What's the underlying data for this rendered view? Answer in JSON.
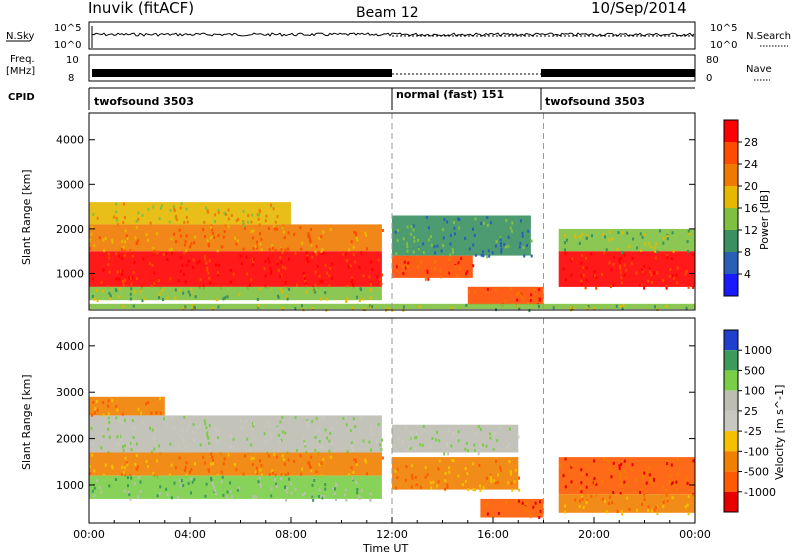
{
  "header": {
    "station": "Inuvik (fitACF)",
    "beam": "Beam 12",
    "date": "10/Sep/2014"
  },
  "noise_panel": {
    "left_label": "N.Sky",
    "left_ticks": [
      "10^5",
      "10^0"
    ],
    "right_label": "N.Search",
    "right_ticks": [
      "10^5",
      "10^0"
    ]
  },
  "freq_panel": {
    "left_label_line1": "Freq.",
    "left_label_line2": "[MHz]",
    "left_ticks": [
      "10",
      "8"
    ],
    "right_label": "Nave",
    "right_ticks": [
      "80",
      "0"
    ]
  },
  "cpid_panel": {
    "label": "CPID",
    "modes": [
      {
        "name": "twofsound 3503",
        "start_hour": 0,
        "end_hour": 12
      },
      {
        "name": "normal (fast) 151",
        "start_hour": 12,
        "end_hour": 18
      },
      {
        "name": "twofsound 3503",
        "start_hour": 18,
        "end_hour": 24
      }
    ]
  },
  "x_axis": {
    "label": "Time UT",
    "ticks": [
      "00:00",
      "04:00",
      "08:00",
      "12:00",
      "16:00",
      "20:00",
      "00:00"
    ]
  },
  "chart_data": [
    {
      "type": "heatmap",
      "title": "Power",
      "xlabel": "Time UT",
      "ylabel": "Slant Range [km]",
      "x_range_hours": [
        0,
        24
      ],
      "ylim": [
        180,
        4600
      ],
      "yticks": [
        "1000",
        "2000",
        "3000",
        "4000"
      ],
      "colorbar": {
        "label": "Power [dB]",
        "tick_labels": [
          "4",
          "8",
          "12",
          "16",
          "20",
          "24",
          "28"
        ],
        "colors": [
          "#1a1aff",
          "#2a5fb8",
          "#3a9060",
          "#7fc040",
          "#e6b800",
          "#f07a00",
          "#ff4d00",
          "#ff0000"
        ]
      },
      "regions": [
        {
          "t0": 0.0,
          "t1": 11.6,
          "r0": 700,
          "r1": 1500,
          "level": 7
        },
        {
          "t0": 0.0,
          "t1": 11.6,
          "r0": 1500,
          "r1": 2100,
          "level": 5
        },
        {
          "t0": 0.0,
          "t1": 8.0,
          "r0": 2100,
          "r1": 2600,
          "level": 4
        },
        {
          "t0": 0.0,
          "t1": 11.6,
          "r0": 400,
          "r1": 700,
          "level": 3
        },
        {
          "t0": 12.0,
          "t1": 15.2,
          "r0": 900,
          "r1": 1400,
          "level": 6
        },
        {
          "t0": 12.0,
          "t1": 17.5,
          "r0": 1400,
          "r1": 2300,
          "level": 2
        },
        {
          "t0": 15.0,
          "t1": 18.0,
          "r0": 300,
          "r1": 700,
          "level": 6
        },
        {
          "t0": 18.6,
          "t1": 24.0,
          "r0": 700,
          "r1": 1500,
          "level": 7
        },
        {
          "t0": 18.6,
          "t1": 24.0,
          "r0": 1500,
          "r1": 2000,
          "level": 3
        },
        {
          "t0": 0.0,
          "t1": 24.0,
          "r0": 200,
          "r1": 320,
          "level": 3
        }
      ]
    },
    {
      "type": "heatmap",
      "title": "Velocity",
      "xlabel": "Time UT",
      "ylabel": "Slant Range [km]",
      "x_range_hours": [
        0,
        24
      ],
      "ylim": [
        180,
        4600
      ],
      "yticks": [
        "1000",
        "2000",
        "3000",
        "4000"
      ],
      "colorbar": {
        "label": "Velocity [m s^-1]",
        "tick_labels": [
          "1000",
          "500",
          "100",
          "25",
          "-25",
          "-100",
          "-500",
          "-1000"
        ],
        "colors": [
          "#1f3fcc",
          "#3c9a5a",
          "#7acd46",
          "#bdbdb3",
          "#c8c8c0",
          "#f5c000",
          "#f08000",
          "#ff5a00",
          "#e60000"
        ]
      },
      "regions": [
        {
          "t0": 0.0,
          "t1": 11.6,
          "r0": 1700,
          "r1": 2500,
          "level": 3
        },
        {
          "t0": 0.0,
          "t1": 11.6,
          "r0": 1200,
          "r1": 1700,
          "level": 6
        },
        {
          "t0": 0.0,
          "t1": 11.6,
          "r0": 700,
          "r1": 1200,
          "level": 2
        },
        {
          "t0": 0.0,
          "t1": 3.0,
          "r0": 2500,
          "r1": 2900,
          "level": 6
        },
        {
          "t0": 12.0,
          "t1": 17.0,
          "r0": 1700,
          "r1": 2300,
          "level": 3
        },
        {
          "t0": 12.0,
          "t1": 17.0,
          "r0": 900,
          "r1": 1600,
          "level": 6
        },
        {
          "t0": 15.5,
          "t1": 18.0,
          "r0": 300,
          "r1": 700,
          "level": 7
        },
        {
          "t0": 18.6,
          "t1": 24.0,
          "r0": 800,
          "r1": 1600,
          "level": 7
        },
        {
          "t0": 18.6,
          "t1": 24.0,
          "r0": 400,
          "r1": 800,
          "level": 6
        }
      ]
    }
  ]
}
